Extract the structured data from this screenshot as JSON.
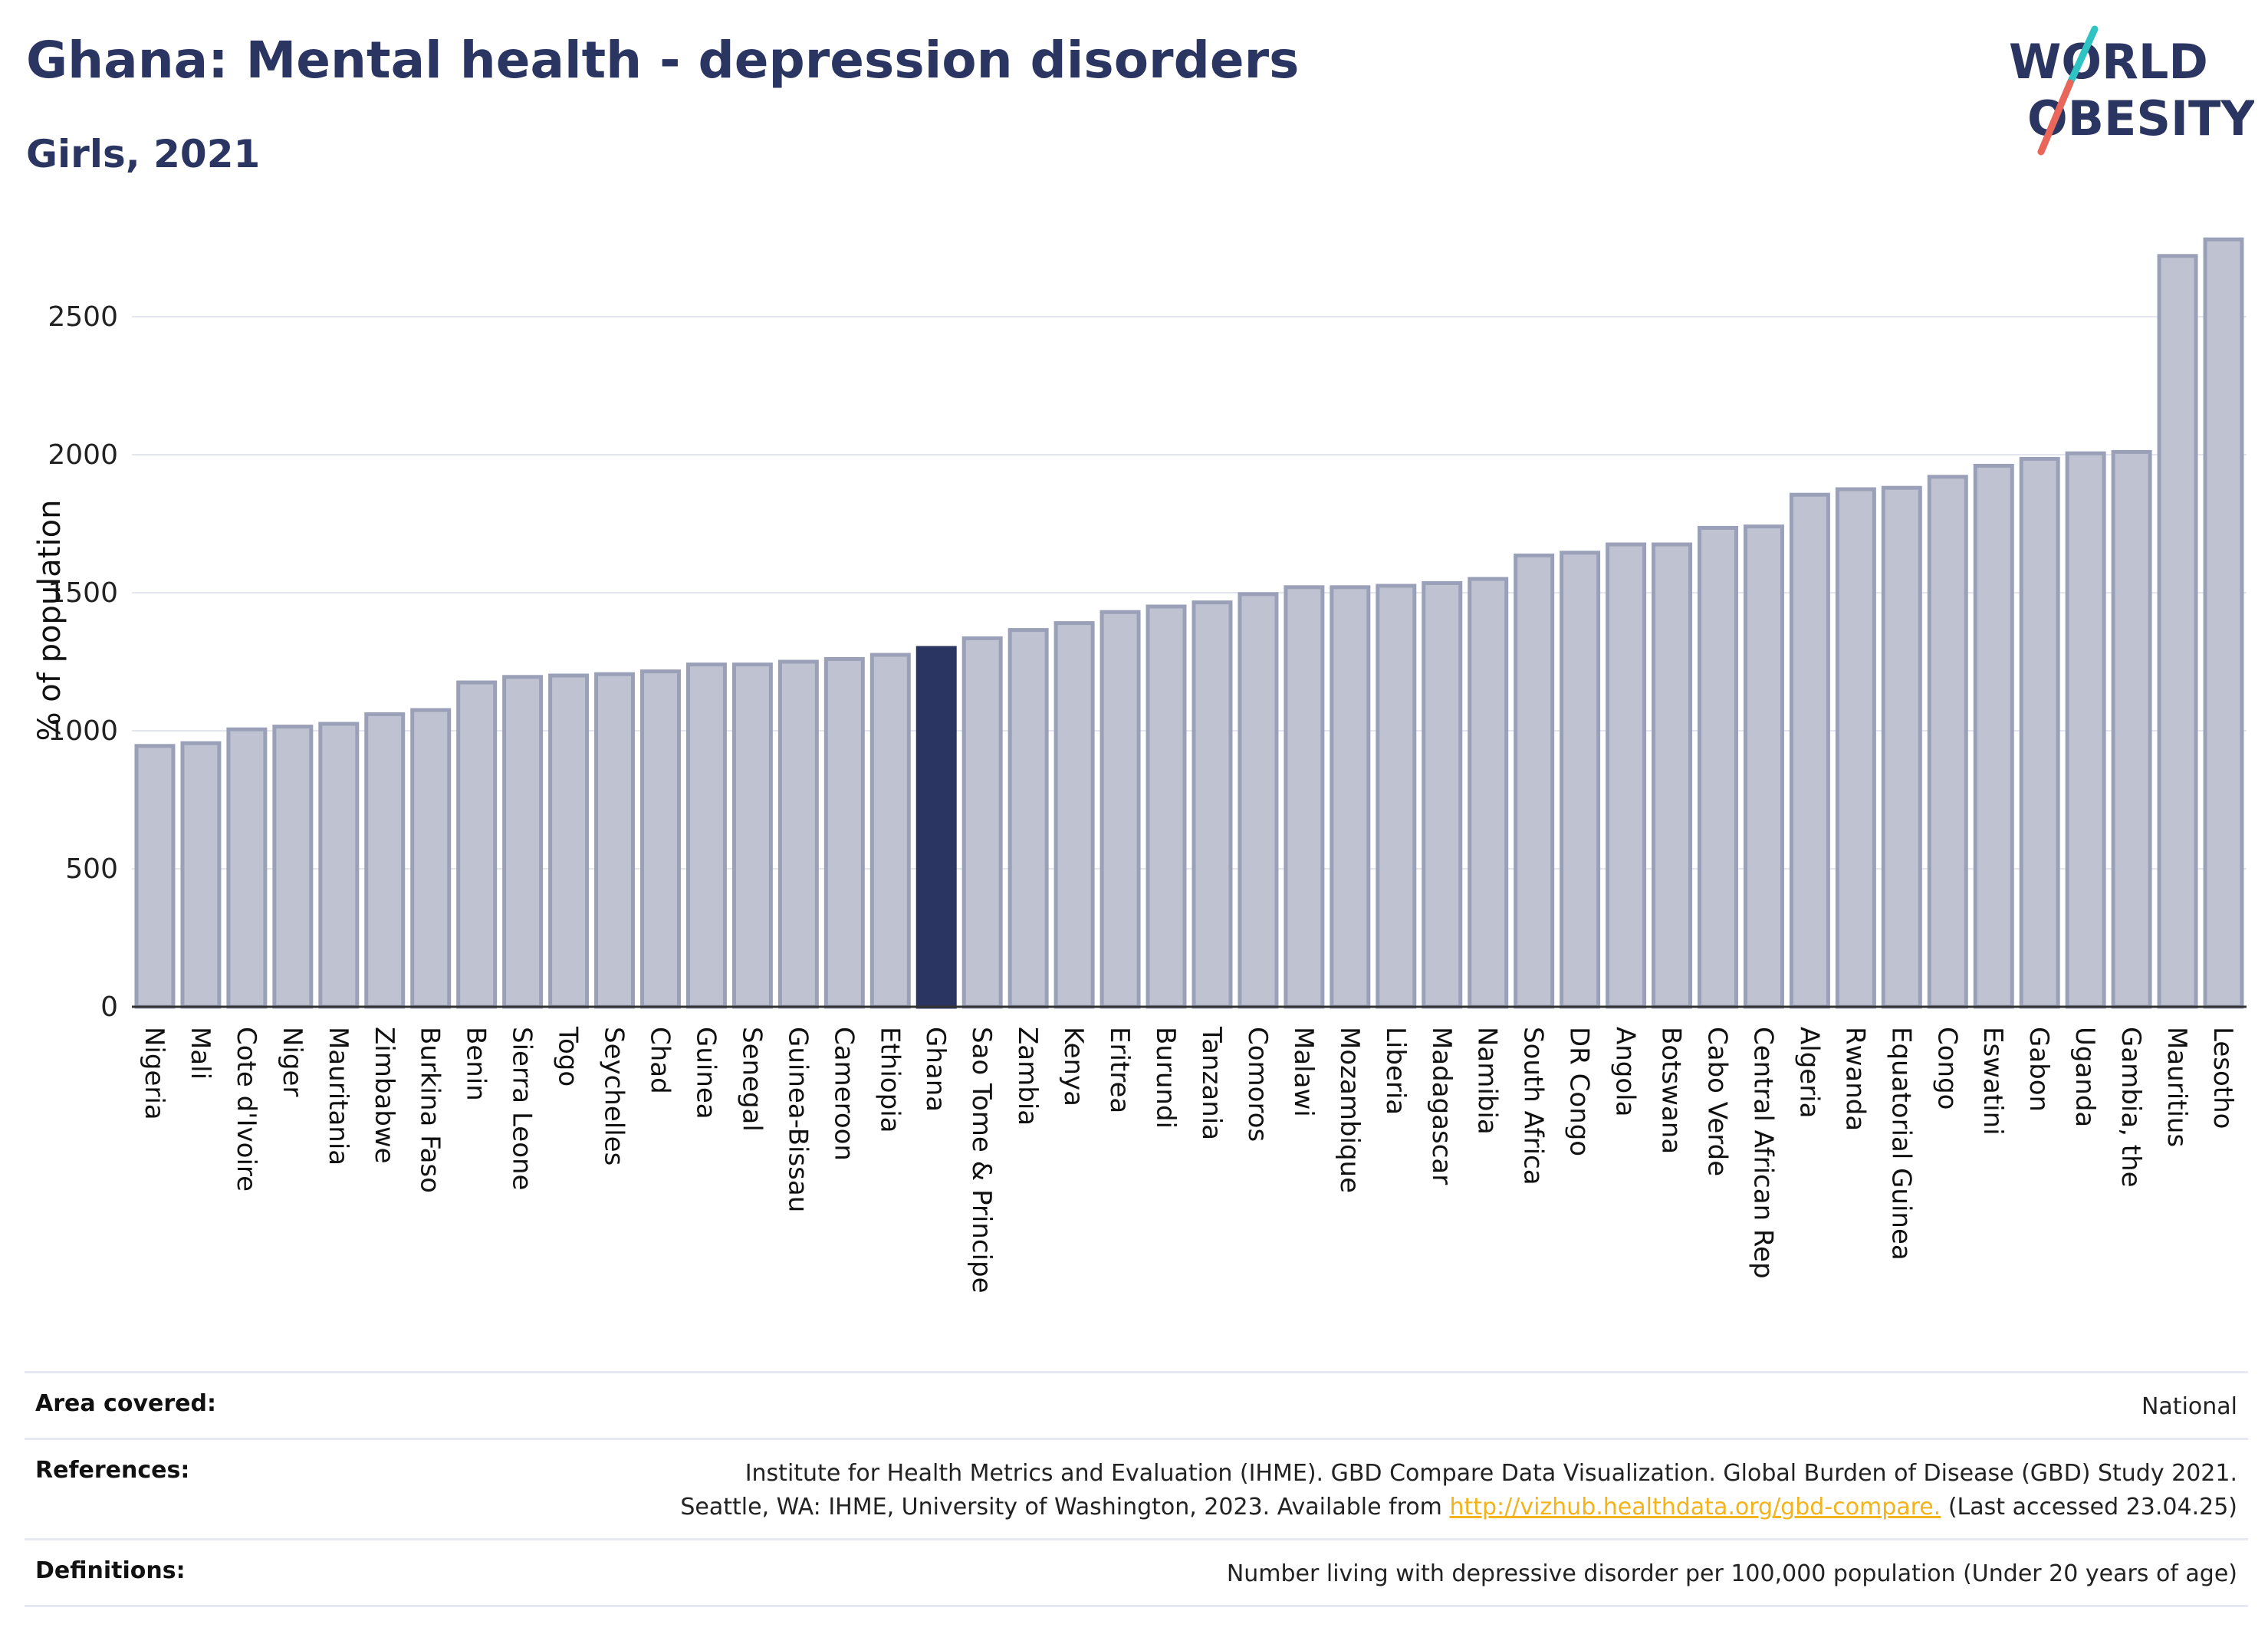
{
  "header": {
    "title": "Ghana: Mental health - depression disorders",
    "subtitle": "Girls, 2021"
  },
  "logo": {
    "line1": "WORLD",
    "line2": "OBESITY"
  },
  "colors": {
    "highlight": "#2b3561",
    "bar_fill": "#bfc3d1",
    "bar_stroke": "#9aa0b8",
    "logo_navy": "#2b3561",
    "logo_teal": "#2ec4c4",
    "logo_coral": "#e8665a",
    "link": "#f2b31c"
  },
  "chart_data": {
    "type": "bar",
    "title": "Ghana: Mental health - depression disorders",
    "subtitle": "Girls, 2021",
    "ylabel": "% of population",
    "xlabel": "",
    "ylim": [
      0,
      2800
    ],
    "yticks": [
      0,
      500,
      1000,
      1500,
      2000,
      2500
    ],
    "grid": true,
    "highlight": "Ghana",
    "categories": [
      "Nigeria",
      "Mali",
      "Cote d'Ivoire",
      "Niger",
      "Mauritania",
      "Zimbabwe",
      "Burkina Faso",
      "Benin",
      "Sierra Leone",
      "Togo",
      "Seychelles",
      "Chad",
      "Guinea",
      "Senegal",
      "Guinea-Bissau",
      "Cameroon",
      "Ethiopia",
      "Ghana",
      "Sao Tome & Principe",
      "Zambia",
      "Kenya",
      "Eritrea",
      "Burundi",
      "Tanzania",
      "Comoros",
      "Malawi",
      "Mozambique",
      "Liberia",
      "Madagascar",
      "Namibia",
      "South Africa",
      "DR Congo",
      "Angola",
      "Botswana",
      "Cabo Verde",
      "Central African Rep",
      "Algeria",
      "Rwanda",
      "Equatorial Guinea",
      "Congo",
      "Eswatini",
      "Gabon",
      "Uganda",
      "Gambia, the",
      "Mauritius",
      "Lesotho"
    ],
    "values": [
      945,
      955,
      1005,
      1015,
      1025,
      1060,
      1075,
      1175,
      1195,
      1200,
      1205,
      1215,
      1240,
      1240,
      1250,
      1260,
      1275,
      1300,
      1335,
      1365,
      1390,
      1430,
      1450,
      1465,
      1495,
      1520,
      1520,
      1525,
      1535,
      1550,
      1635,
      1645,
      1675,
      1675,
      1735,
      1740,
      1855,
      1875,
      1880,
      1920,
      1960,
      1985,
      2005,
      2010,
      2720,
      2780
    ]
  },
  "footer": {
    "area_label": "Area covered:",
    "area_value": "National",
    "references_label": "References:",
    "references_line1": "Institute for Health Metrics and Evaluation (IHME). GBD Compare Data Visualization. Global Burden of Disease (GBD) Study 2021.",
    "references_line2_pre": "Seattle, WA: IHME, University of Washington, 2023. Available from ",
    "references_link": "http://vizhub.healthdata.org/gbd-compare.",
    "references_line2_post": " (Last accessed 23.04.25)",
    "definitions_label": "Definitions:",
    "definitions_value": "Number living with depressive disorder per 100,000 population (Under 20 years of age)"
  }
}
